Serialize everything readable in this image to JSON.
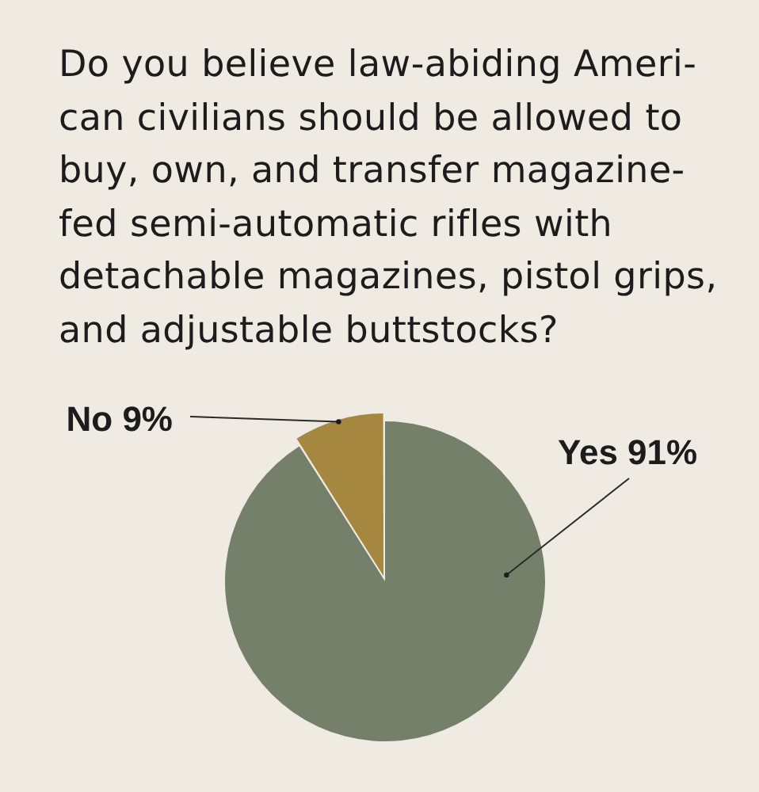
{
  "chart_data": {
    "type": "pie",
    "title": "Do you believe law-abiding Ameri-\ncan civilians should be allowed to\nbuy, own, and transfer magazine-\nfed semi-automatic rifles with\ndetachable magazines, pistol grips,\nand adjustable buttstocks?",
    "categories": [
      "Yes",
      "No"
    ],
    "values": [
      91,
      9
    ],
    "colors": [
      "#74806a",
      "#a6873f"
    ],
    "value_labels": [
      "91%",
      "9%"
    ]
  }
}
